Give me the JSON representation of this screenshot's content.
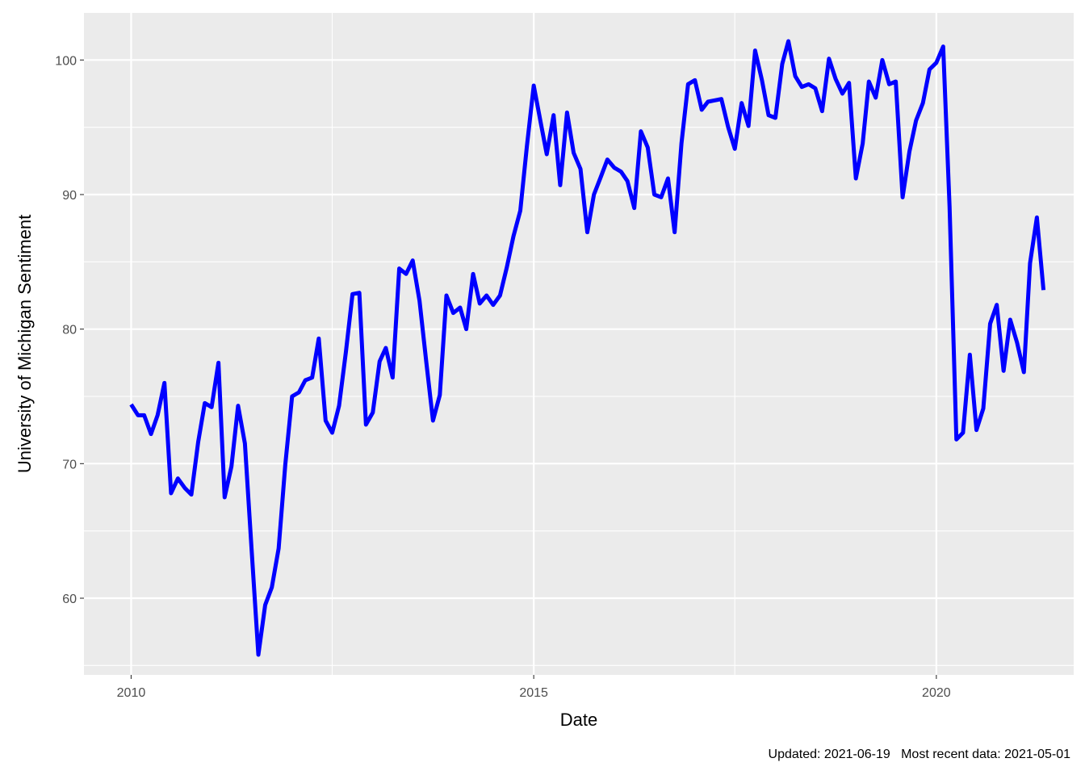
{
  "chart_data": {
    "type": "line",
    "xlabel": "Date",
    "ylabel": "University of Michigan Sentiment",
    "caption": "Updated: 2021-06-19   Most recent data: 2021-05-01",
    "xlim": [
      "2009-06-01",
      "2021-09-15"
    ],
    "ylim": [
      54.3,
      103.5
    ],
    "x_ticks": [
      {
        "date": "2010-01-01",
        "label": "2010"
      },
      {
        "date": "2015-01-01",
        "label": "2015"
      },
      {
        "date": "2020-01-01",
        "label": "2020"
      }
    ],
    "x_minor_breaks": [
      "2012-07-01",
      "2017-07-01"
    ],
    "y_ticks": [
      60,
      70,
      80,
      90,
      100
    ],
    "y_minor_breaks": [
      55,
      65,
      75,
      85,
      95
    ],
    "grid": true,
    "colors": {
      "line": "#0000ff",
      "panel": "#ebebeb",
      "grid": "#ffffff"
    },
    "series": [
      {
        "x": [
          "2010-01",
          "2010-02",
          "2010-03",
          "2010-04",
          "2010-05",
          "2010-06",
          "2010-07",
          "2010-08",
          "2010-09",
          "2010-10",
          "2010-11",
          "2010-12",
          "2011-01",
          "2011-02",
          "2011-03",
          "2011-04",
          "2011-05",
          "2011-06",
          "2011-07",
          "2011-08",
          "2011-09",
          "2011-10",
          "2011-11",
          "2011-12",
          "2012-01",
          "2012-02",
          "2012-03",
          "2012-04",
          "2012-05",
          "2012-06",
          "2012-07",
          "2012-08",
          "2012-09",
          "2012-10",
          "2012-11",
          "2012-12",
          "2013-01",
          "2013-02",
          "2013-03",
          "2013-04",
          "2013-05",
          "2013-06",
          "2013-07",
          "2013-08",
          "2013-09",
          "2013-10",
          "2013-11",
          "2013-12",
          "2014-01",
          "2014-02",
          "2014-03",
          "2014-04",
          "2014-05",
          "2014-06",
          "2014-07",
          "2014-08",
          "2014-09",
          "2014-10",
          "2014-11",
          "2014-12",
          "2015-01",
          "2015-02",
          "2015-03",
          "2015-04",
          "2015-05",
          "2015-06",
          "2015-07",
          "2015-08",
          "2015-09",
          "2015-10",
          "2015-11",
          "2015-12",
          "2016-01",
          "2016-02",
          "2016-03",
          "2016-04",
          "2016-05",
          "2016-06",
          "2016-07",
          "2016-08",
          "2016-09",
          "2016-10",
          "2016-11",
          "2016-12",
          "2017-01",
          "2017-02",
          "2017-03",
          "2017-04",
          "2017-05",
          "2017-06",
          "2017-07",
          "2017-08",
          "2017-09",
          "2017-10",
          "2017-11",
          "2017-12",
          "2018-01",
          "2018-02",
          "2018-03",
          "2018-04",
          "2018-05",
          "2018-06",
          "2018-07",
          "2018-08",
          "2018-09",
          "2018-10",
          "2018-11",
          "2018-12",
          "2019-01",
          "2019-02",
          "2019-03",
          "2019-04",
          "2019-05",
          "2019-06",
          "2019-07",
          "2019-08",
          "2019-09",
          "2019-10",
          "2019-11",
          "2019-12",
          "2020-01",
          "2020-02",
          "2020-03",
          "2020-04",
          "2020-05",
          "2020-06",
          "2020-07",
          "2020-08",
          "2020-09",
          "2020-10",
          "2020-11",
          "2020-12",
          "2021-01",
          "2021-02",
          "2021-03",
          "2021-04",
          "2021-05"
        ],
        "values": [
          74.4,
          73.6,
          73.6,
          72.2,
          73.6,
          76.0,
          67.8,
          68.9,
          68.2,
          67.7,
          71.6,
          74.5,
          74.2,
          77.5,
          67.5,
          69.8,
          74.3,
          71.5,
          63.7,
          55.8,
          59.5,
          60.8,
          63.7,
          69.9,
          75.0,
          75.3,
          76.2,
          76.4,
          79.3,
          73.2,
          72.3,
          74.3,
          78.3,
          82.6,
          82.7,
          72.9,
          73.8,
          77.6,
          78.6,
          76.4,
          84.5,
          84.1,
          85.1,
          82.1,
          77.5,
          73.2,
          75.1,
          82.5,
          81.2,
          81.6,
          80.0,
          84.1,
          81.9,
          82.5,
          81.8,
          82.5,
          84.6,
          86.9,
          88.8,
          93.6,
          98.1,
          95.4,
          93.0,
          95.9,
          90.7,
          96.1,
          93.1,
          91.9,
          87.2,
          90.0,
          91.3,
          92.6,
          92.0,
          91.7,
          91.0,
          89.0,
          94.7,
          93.5,
          90.0,
          89.8,
          91.2,
          87.2,
          93.8,
          98.2,
          98.5,
          96.3,
          96.9,
          97.0,
          97.1,
          95.0,
          93.4,
          96.8,
          95.1,
          100.7,
          98.5,
          95.9,
          95.7,
          99.7,
          101.4,
          98.8,
          98.0,
          98.2,
          97.9,
          96.2,
          100.1,
          98.6,
          97.5,
          98.3,
          91.2,
          93.8,
          98.4,
          97.2,
          100.0,
          98.2,
          98.4,
          89.8,
          93.2,
          95.5,
          96.8,
          99.3,
          99.8,
          101.0,
          89.1,
          71.8,
          72.3,
          78.1,
          72.5,
          74.1,
          80.4,
          81.8,
          76.9,
          80.7,
          79.0,
          76.8,
          84.9,
          88.3,
          82.9
        ]
      }
    ]
  }
}
